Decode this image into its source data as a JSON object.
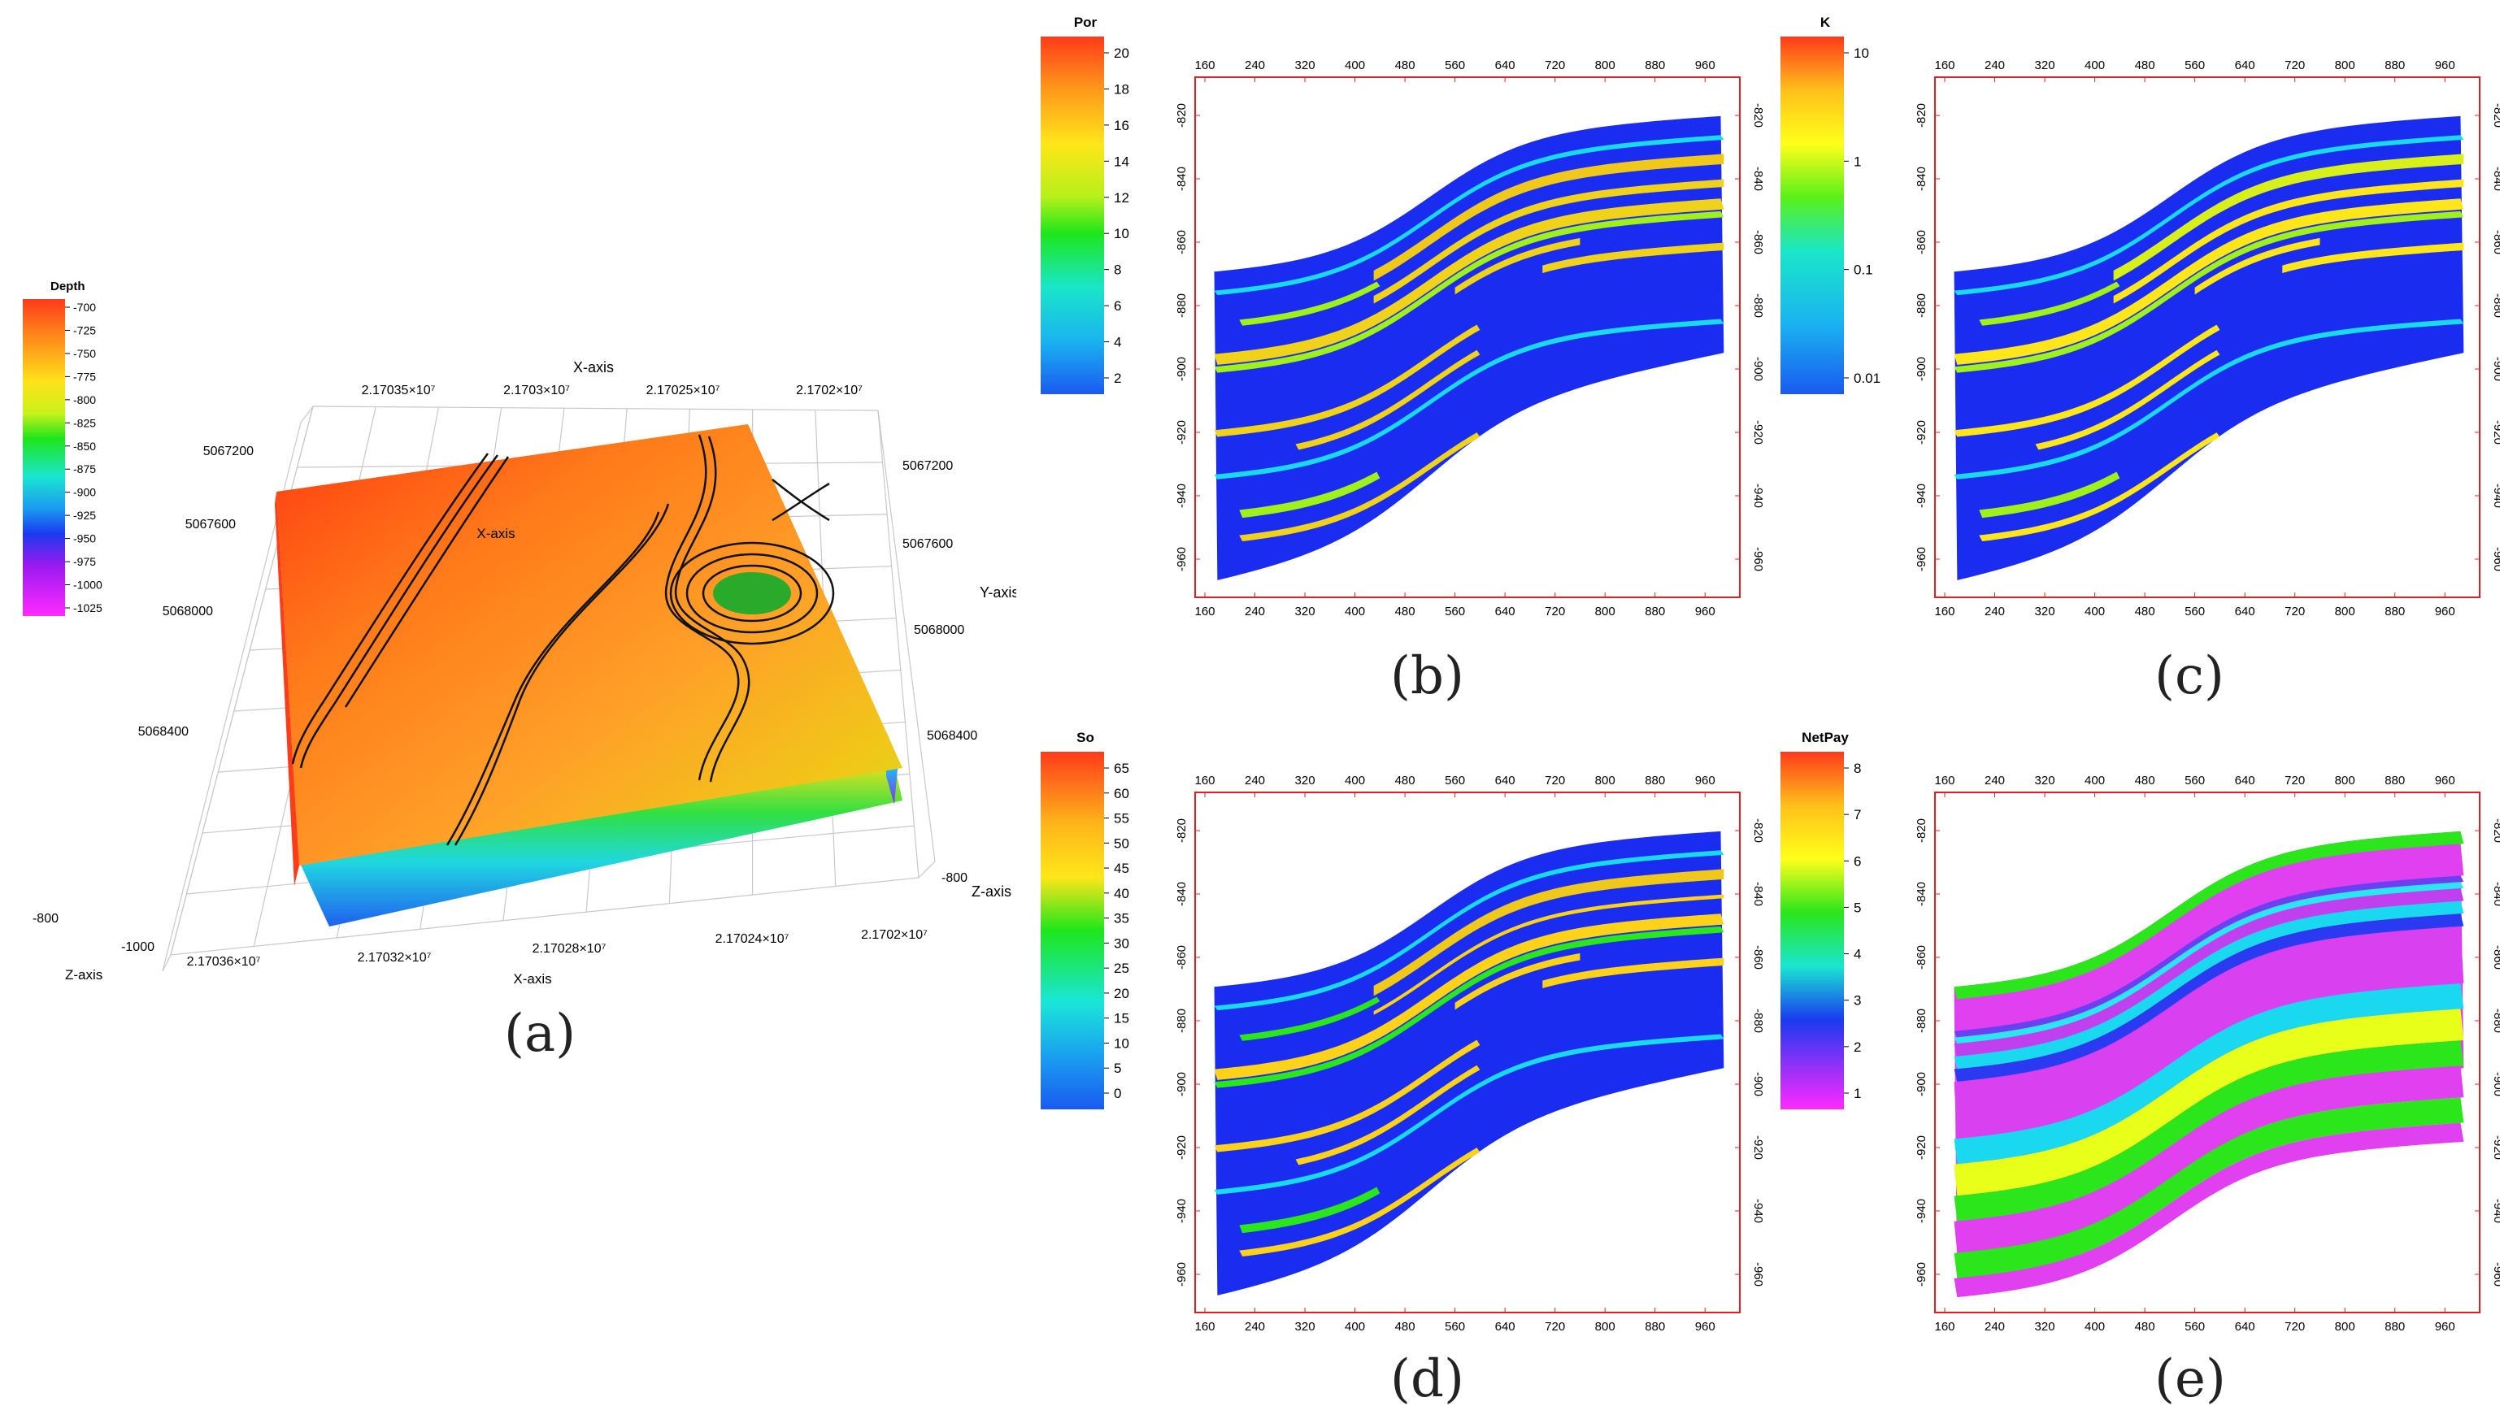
{
  "figure": {
    "panel_a": {
      "label": "(a)",
      "colorbar": {
        "title": "Depth",
        "ticks": [
          "-700",
          "-725",
          "-750",
          "-775",
          "-800",
          "-825",
          "-850",
          "-875",
          "-900",
          "-925",
          "-950",
          "-975",
          "-1000",
          "-1025"
        ]
      },
      "x_axis": {
        "title": "X-axis",
        "top_ticks": [
          "2.17035×10⁷",
          "2.1703×10⁷",
          "2.17025×10⁷",
          "2.1702×10⁷"
        ],
        "bottom_ticks": [
          "2.17036×10⁷",
          "2.17032×10⁷",
          "2.17028×10⁷",
          "2.17024×10⁷",
          "2.1702×10⁷"
        ]
      },
      "y_axis": {
        "title": "Y-axis",
        "left_ticks": [
          "5067200",
          "5067600",
          "5068000",
          "5068400"
        ],
        "right_ticks": [
          "5067200",
          "5067600",
          "5068000",
          "5068400"
        ]
      },
      "z_axis": {
        "title": "Z-axis",
        "left_ticks": [
          "-800",
          "-1000"
        ],
        "right_ticks": [
          "-800"
        ]
      }
    },
    "panel_b": {
      "label": "(b)",
      "colorbar": {
        "title": "Por",
        "ticks": [
          "20",
          "18",
          "16",
          "14",
          "12",
          "10",
          "8",
          "6",
          "4",
          "2"
        ]
      }
    },
    "panel_c": {
      "label": "(c)",
      "colorbar": {
        "title": "K",
        "ticks": [
          "10",
          "1",
          "0.1",
          "0.01"
        ]
      }
    },
    "panel_d": {
      "label": "(d)",
      "colorbar": {
        "title": "So",
        "ticks": [
          "65",
          "60",
          "55",
          "50",
          "45",
          "40",
          "35",
          "30",
          "25",
          "20",
          "15",
          "10",
          "5",
          "0"
        ]
      }
    },
    "panel_e": {
      "label": "(e)",
      "colorbar": {
        "title": "NetPay",
        "ticks": [
          "8",
          "7",
          "6",
          "5",
          "4",
          "3",
          "2",
          "1"
        ]
      }
    },
    "section_axes": {
      "x_ticks": [
        "160",
        "240",
        "320",
        "400",
        "480",
        "560",
        "640",
        "720",
        "800",
        "880",
        "960"
      ],
      "y_ticks": [
        "-820",
        "-840",
        "-860",
        "-880",
        "-900",
        "-920",
        "-940",
        "-960"
      ]
    }
  },
  "chart_data": [
    {
      "type": "heatmap",
      "panel": "a",
      "title": "",
      "colorbar_title": "Depth",
      "value_range": [
        -1025,
        -700
      ],
      "xlabel": "X-axis",
      "ylabel": "Y-axis",
      "zlabel": "Z-axis"
    },
    {
      "type": "heatmap",
      "panel": "b",
      "title": "",
      "colorbar_title": "Por",
      "value_range": [
        0,
        20
      ],
      "xlim": [
        160,
        1000
      ],
      "ylim": [
        -970,
        -810
      ],
      "x_ticks": [
        160,
        240,
        320,
        400,
        480,
        560,
        640,
        720,
        800,
        880,
        960
      ],
      "y_ticks": [
        -820,
        -840,
        -860,
        -880,
        -900,
        -920,
        -940,
        -960
      ]
    },
    {
      "type": "heatmap",
      "panel": "c",
      "title": "",
      "colorbar_title": "K",
      "color_scale": "log",
      "value_range": [
        0.01,
        10
      ],
      "xlim": [
        160,
        1000
      ],
      "ylim": [
        -970,
        -810
      ],
      "x_ticks": [
        160,
        240,
        320,
        400,
        480,
        560,
        640,
        720,
        800,
        880,
        960
      ],
      "y_ticks": [
        -820,
        -840,
        -860,
        -880,
        -900,
        -920,
        -940,
        -960
      ]
    },
    {
      "type": "heatmap",
      "panel": "d",
      "title": "",
      "colorbar_title": "So",
      "value_range": [
        0,
        65
      ],
      "xlim": [
        160,
        1000
      ],
      "ylim": [
        -970,
        -810
      ],
      "x_ticks": [
        160,
        240,
        320,
        400,
        480,
        560,
        640,
        720,
        800,
        880,
        960
      ],
      "y_ticks": [
        -820,
        -840,
        -860,
        -880,
        -900,
        -920,
        -940,
        -960
      ]
    },
    {
      "type": "heatmap",
      "panel": "e",
      "title": "",
      "colorbar_title": "NetPay",
      "value_range": [
        1,
        8
      ],
      "xlim": [
        160,
        1000
      ],
      "ylim": [
        -970,
        -810
      ],
      "x_ticks": [
        160,
        240,
        320,
        400,
        480,
        560,
        640,
        720,
        800,
        880,
        960
      ],
      "y_ticks": [
        -820,
        -840,
        -860,
        -880,
        -900,
        -920,
        -940,
        -960
      ]
    }
  ]
}
